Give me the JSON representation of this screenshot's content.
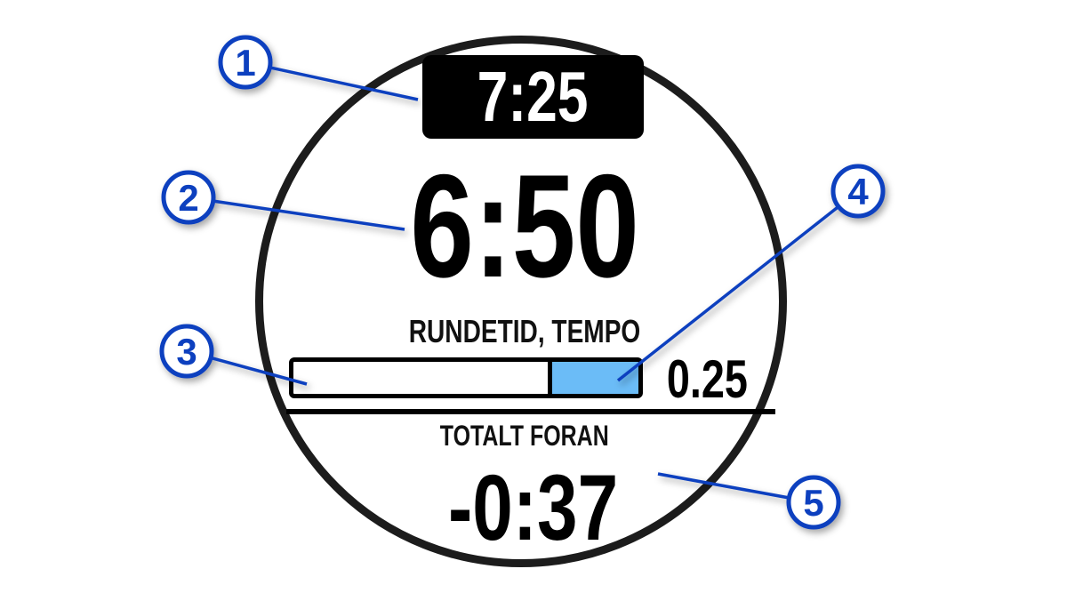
{
  "watch": {
    "top_value": "7:25",
    "main_value": "6:50",
    "main_label": "RUNDETID, TEMPO",
    "progress": {
      "value_label": "0.25",
      "fill_fraction": 0.25,
      "fill_color": "#6bbcf7"
    },
    "bottom_label": "TOTALT FORAN",
    "bottom_value": "-0:37"
  },
  "callouts": {
    "color": "#0a3fbf",
    "items": [
      {
        "number": "1"
      },
      {
        "number": "2"
      },
      {
        "number": "3"
      },
      {
        "number": "4"
      },
      {
        "number": "5"
      }
    ]
  }
}
